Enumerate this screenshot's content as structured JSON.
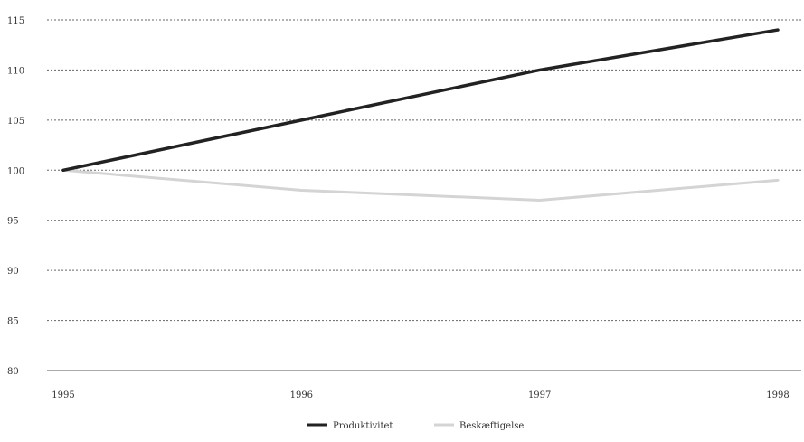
{
  "chart_data": {
    "type": "line",
    "title": "",
    "xlabel": "",
    "ylabel": "",
    "categories": [
      "1995",
      "1996",
      "1997",
      "1998"
    ],
    "ylim": [
      80,
      115
    ],
    "yticks": [
      80,
      85,
      90,
      95,
      100,
      105,
      110,
      115
    ],
    "grid": true,
    "legend_position": "bottom",
    "series": [
      {
        "name": "Produktivitet",
        "values": [
          100,
          105,
          110,
          114
        ],
        "color": "#222222"
      },
      {
        "name": "Beskæftigelse",
        "values": [
          100,
          98,
          97,
          99
        ],
        "color": "#d4d4d4"
      }
    ]
  }
}
